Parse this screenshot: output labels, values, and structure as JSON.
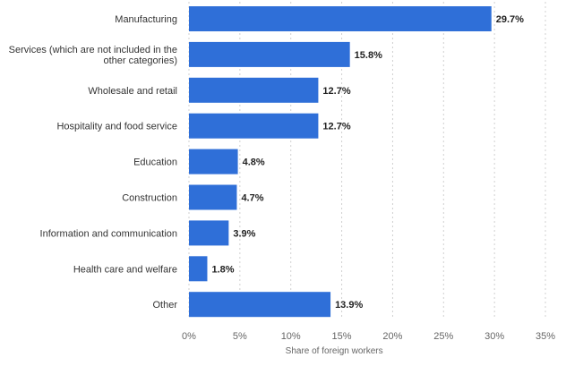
{
  "chart_data": {
    "type": "bar",
    "orientation": "horizontal",
    "categories": [
      [
        "Manufacturing"
      ],
      [
        "Services (which are not included in the",
        "other categories)"
      ],
      [
        "Wholesale and retail"
      ],
      [
        "Hospitality and food service"
      ],
      [
        "Education"
      ],
      [
        "Construction"
      ],
      [
        "Information and communication"
      ],
      [
        "Health care and welfare"
      ],
      [
        "Other"
      ]
    ],
    "values": [
      29.7,
      15.8,
      12.7,
      12.7,
      4.8,
      4.7,
      3.9,
      1.8,
      13.9
    ],
    "value_labels": [
      "29.7%",
      "15.8%",
      "12.7%",
      "12.7%",
      "4.8%",
      "4.7%",
      "3.9%",
      "1.8%",
      "13.9%"
    ],
    "xlim": [
      0,
      35
    ],
    "x_ticks": [
      0,
      5,
      10,
      15,
      20,
      25,
      30,
      35
    ],
    "x_tick_labels": [
      "0%",
      "5%",
      "10%",
      "15%",
      "20%",
      "25%",
      "30%",
      "35%"
    ],
    "xlabel": "Share of foreign workers",
    "ylabel": "",
    "title": "",
    "grid": true,
    "bar_color": "#2f6fd8"
  }
}
